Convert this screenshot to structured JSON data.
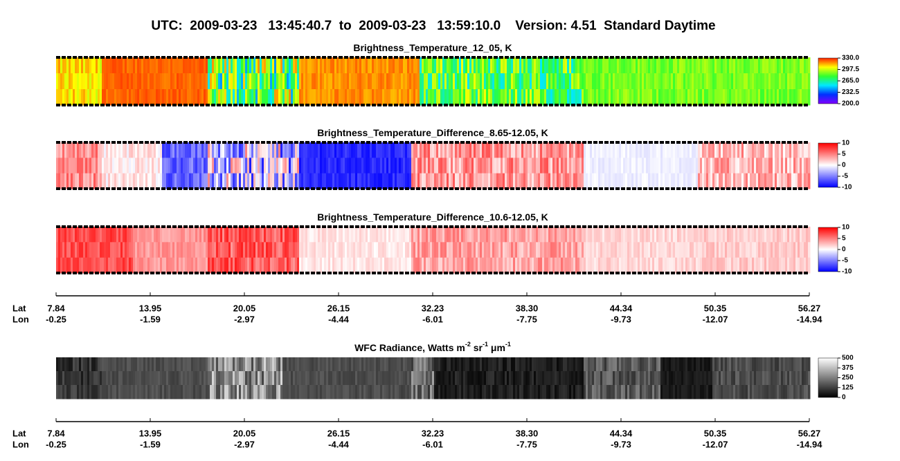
{
  "title": "UTC:  2009-03-23   13:45:40.7  to  2009-03-23   13:59:10.0    Version: 4.51  Standard Daytime",
  "chart_data": [
    {
      "type": "heatmap",
      "title": [
        "Brightness_Temperature_12_05, K"
      ],
      "clim": [
        200,
        330
      ],
      "cticks": [
        {
          "value": 330,
          "label": "330.0"
        },
        {
          "value": 297.5,
          "label": "297.5"
        },
        {
          "value": 265,
          "label": "265.0"
        },
        {
          "value": 232.5,
          "label": "232.5"
        },
        {
          "value": 200,
          "label": "200.0"
        }
      ],
      "colors": [
        "#8000ff",
        "#0030ff",
        "#00e8ff",
        "#30ff30",
        "#ffff00",
        "#ff2000"
      ]
    },
    {
      "type": "heatmap",
      "title": [
        "Brightness_Temperature_Difference_8.65-12.05, K"
      ],
      "clim": [
        -10,
        10
      ],
      "cticks": [
        10,
        5,
        0,
        -5,
        -10
      ],
      "colors": [
        "#0000ff",
        "#ffffff",
        "#ff0000"
      ]
    },
    {
      "type": "heatmap",
      "title": [
        "Brightness_Temperature_Difference_10.6-12.05, K"
      ],
      "clim": [
        -10,
        10
      ],
      "cticks": [
        10,
        5,
        0,
        -5,
        -10
      ],
      "colors": [
        "#0000ff",
        "#ffffff",
        "#ff0000"
      ]
    },
    {
      "type": "heatmap",
      "title": [
        "WFC Radiance, Watts m",
        "-2",
        " sr",
        "-1",
        " μm",
        "-1"
      ],
      "clim": [
        0,
        500
      ],
      "cticks": [
        500,
        375,
        250,
        125,
        0
      ],
      "colors": [
        "#000000",
        "#ffffff"
      ]
    }
  ],
  "axes": [
    {
      "lat_label": "Lat",
      "lon_label": "Lon",
      "lat": [
        7.84,
        13.95,
        20.05,
        26.15,
        32.23,
        {
          "value": 38.3,
          "label": "38.30"
        },
        44.34,
        50.35,
        56.27
      ],
      "lon": [
        -0.25,
        -1.59,
        -2.97,
        -4.44,
        -6.01,
        -7.75,
        -9.73,
        -12.07,
        -14.94
      ]
    },
    {
      "lat_label": "Lat",
      "lon_label": "Lon",
      "lat": [
        7.84,
        13.95,
        20.05,
        26.15,
        32.23,
        {
          "value": 38.3,
          "label": "38.30"
        },
        44.34,
        50.35,
        56.27
      ],
      "lon": [
        -0.25,
        -1.59,
        -2.97,
        -4.44,
        -6.01,
        -7.75,
        -9.73,
        -12.07,
        -14.94
      ]
    }
  ]
}
